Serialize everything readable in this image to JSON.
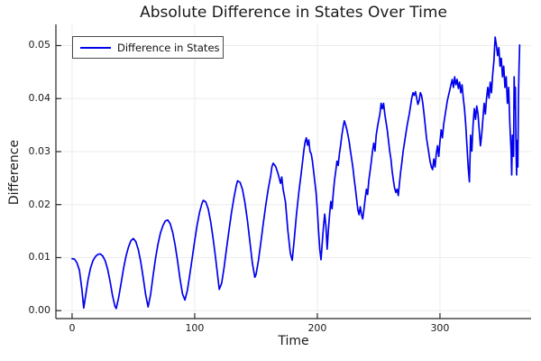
{
  "figure": {
    "background": "#ffffff",
    "grid_color": "#ececec",
    "spine_color": "#262626"
  },
  "chart_data": {
    "type": "line",
    "title": "Absolute Difference in States Over Time",
    "xlabel": "Time",
    "ylabel": "Difference",
    "xlim": [
      -13.2,
      374.3
    ],
    "ylim": [
      -0.0015,
      0.054
    ],
    "x_ticks": [
      0,
      100,
      200,
      300
    ],
    "x_tick_labels": [
      "0",
      "100",
      "200",
      "300"
    ],
    "y_ticks": [
      0,
      0.01,
      0.02,
      0.03,
      0.04,
      0.05
    ],
    "y_tick_labels": [
      "0.00",
      "0.01",
      "0.02",
      "0.03",
      "0.04",
      "0.05"
    ],
    "grid": true,
    "legend": {
      "position": "top-left",
      "entries": [
        {
          "label": "Difference in States",
          "color": "#0000ee"
        }
      ]
    },
    "series": [
      {
        "name": "Difference in States",
        "color": "#0000ee",
        "points": [
          [
            0,
            0.0098
          ],
          [
            2,
            0.0097
          ],
          [
            4,
            0.009
          ],
          [
            6,
            0.0076
          ],
          [
            8,
            0.004
          ],
          [
            9.5,
            0.0005
          ],
          [
            11,
            0.0028
          ],
          [
            13,
            0.0058
          ],
          [
            15,
            0.008
          ],
          [
            17,
            0.0094
          ],
          [
            19,
            0.0102
          ],
          [
            21,
            0.0106
          ],
          [
            23,
            0.0107
          ],
          [
            25,
            0.0103
          ],
          [
            27,
            0.0094
          ],
          [
            29,
            0.0078
          ],
          [
            31,
            0.0055
          ],
          [
            33,
            0.0028
          ],
          [
            35,
            0.0008
          ],
          [
            36,
            0.0004
          ],
          [
            38,
            0.0025
          ],
          [
            40,
            0.0052
          ],
          [
            42,
            0.008
          ],
          [
            44,
            0.0103
          ],
          [
            46,
            0.012
          ],
          [
            48,
            0.0132
          ],
          [
            50,
            0.0136
          ],
          [
            52,
            0.013
          ],
          [
            54,
            0.0115
          ],
          [
            56,
            0.0092
          ],
          [
            58,
            0.0062
          ],
          [
            60,
            0.003
          ],
          [
            62,
            0.0007
          ],
          [
            64,
            0.003
          ],
          [
            66,
            0.0065
          ],
          [
            68,
            0.0098
          ],
          [
            70,
            0.0125
          ],
          [
            72,
            0.0146
          ],
          [
            74,
            0.016
          ],
          [
            76,
            0.0169
          ],
          [
            78,
            0.0171
          ],
          [
            80,
            0.0164
          ],
          [
            82,
            0.0148
          ],
          [
            84,
            0.0124
          ],
          [
            86,
            0.0094
          ],
          [
            88,
            0.006
          ],
          [
            90,
            0.0032
          ],
          [
            92,
            0.002
          ],
          [
            94,
            0.0038
          ],
          [
            96,
            0.0068
          ],
          [
            98,
            0.01
          ],
          [
            100,
            0.0132
          ],
          [
            102,
            0.0162
          ],
          [
            104,
            0.0186
          ],
          [
            106,
            0.0203
          ],
          [
            107,
            0.0208
          ],
          [
            109,
            0.0205
          ],
          [
            111,
            0.0192
          ],
          [
            113,
            0.0168
          ],
          [
            115,
            0.0136
          ],
          [
            117,
            0.01
          ],
          [
            119,
            0.006
          ],
          [
            120,
            0.004
          ],
          [
            122,
            0.0052
          ],
          [
            124,
            0.0082
          ],
          [
            126,
            0.0118
          ],
          [
            128,
            0.0152
          ],
          [
            130,
            0.0185
          ],
          [
            132,
            0.0213
          ],
          [
            134,
            0.0237
          ],
          [
            135,
            0.0245
          ],
          [
            137,
            0.0242
          ],
          [
            139,
            0.0228
          ],
          [
            141,
            0.0203
          ],
          [
            143,
            0.017
          ],
          [
            145,
            0.013
          ],
          [
            147,
            0.009
          ],
          [
            149,
            0.0063
          ],
          [
            150,
            0.0068
          ],
          [
            152,
            0.0095
          ],
          [
            154,
            0.013
          ],
          [
            156,
            0.0166
          ],
          [
            158,
            0.02
          ],
          [
            160,
            0.023
          ],
          [
            162,
            0.0255
          ],
          [
            163,
            0.0272
          ],
          [
            164,
            0.0278
          ],
          [
            166,
            0.0272
          ],
          [
            168,
            0.0258
          ],
          [
            170,
            0.024
          ],
          [
            171,
            0.0252
          ],
          [
            172,
            0.023
          ],
          [
            174,
            0.0205
          ],
          [
            176,
            0.015
          ],
          [
            178,
            0.0108
          ],
          [
            179.5,
            0.0095
          ],
          [
            181,
            0.013
          ],
          [
            183,
            0.0182
          ],
          [
            185,
            0.0225
          ],
          [
            187,
            0.0262
          ],
          [
            189,
            0.0302
          ],
          [
            190,
            0.0318
          ],
          [
            191,
            0.0326
          ],
          [
            192,
            0.0312
          ],
          [
            193,
            0.0322
          ],
          [
            194,
            0.03
          ],
          [
            195,
            0.0296
          ],
          [
            196,
            0.0282
          ],
          [
            197,
            0.0262
          ],
          [
            198,
            0.0242
          ],
          [
            199,
            0.0222
          ],
          [
            200,
            0.019
          ],
          [
            201,
            0.015
          ],
          [
            202,
            0.0115
          ],
          [
            203,
            0.0096
          ],
          [
            204,
            0.0128
          ],
          [
            205,
            0.0158
          ],
          [
            206,
            0.0182
          ],
          [
            207,
            0.016
          ],
          [
            208,
            0.0116
          ],
          [
            209,
            0.0152
          ],
          [
            210,
            0.0182
          ],
          [
            211,
            0.0206
          ],
          [
            212,
            0.0192
          ],
          [
            213,
            0.0222
          ],
          [
            214,
            0.0246
          ],
          [
            215,
            0.0263
          ],
          [
            216,
            0.0282
          ],
          [
            217,
            0.0274
          ],
          [
            218,
            0.0296
          ],
          [
            219,
            0.0312
          ],
          [
            220,
            0.0331
          ],
          [
            221,
            0.0346
          ],
          [
            222,
            0.0358
          ],
          [
            223,
            0.0351
          ],
          [
            224,
            0.0342
          ],
          [
            225,
            0.0331
          ],
          [
            226,
            0.0318
          ],
          [
            227,
            0.0301
          ],
          [
            228,
            0.0286
          ],
          [
            229,
            0.027
          ],
          [
            230,
            0.0249
          ],
          [
            231,
            0.0231
          ],
          [
            232,
            0.0211
          ],
          [
            233,
            0.0191
          ],
          [
            234,
            0.0181
          ],
          [
            235,
            0.0196
          ],
          [
            236,
            0.0181
          ],
          [
            237,
            0.0173
          ],
          [
            238,
            0.0191
          ],
          [
            239,
            0.0211
          ],
          [
            240,
            0.0229
          ],
          [
            241,
            0.0219
          ],
          [
            242,
            0.0246
          ],
          [
            243,
            0.0263
          ],
          [
            244,
            0.0281
          ],
          [
            245,
            0.0301
          ],
          [
            246,
            0.0316
          ],
          [
            247,
            0.0301
          ],
          [
            248,
            0.0331
          ],
          [
            249,
            0.0346
          ],
          [
            250,
            0.0359
          ],
          [
            251,
            0.0371
          ],
          [
            252,
            0.0391
          ],
          [
            253,
            0.0381
          ],
          [
            254,
            0.0391
          ],
          [
            255,
            0.0371
          ],
          [
            256,
            0.0356
          ],
          [
            257,
            0.0341
          ],
          [
            258,
            0.0321
          ],
          [
            259,
            0.0301
          ],
          [
            260,
            0.0286
          ],
          [
            261,
            0.0263
          ],
          [
            262,
            0.0246
          ],
          [
            263,
            0.0231
          ],
          [
            264,
            0.0223
          ],
          [
            265,
            0.0229
          ],
          [
            266,
            0.0217
          ],
          [
            267,
            0.0241
          ],
          [
            268,
            0.0263
          ],
          [
            269,
            0.0281
          ],
          [
            270,
            0.0301
          ],
          [
            271,
            0.0316
          ],
          [
            272,
            0.0331
          ],
          [
            273,
            0.0346
          ],
          [
            274,
            0.0359
          ],
          [
            275,
            0.0371
          ],
          [
            276,
            0.0386
          ],
          [
            277,
            0.0401
          ],
          [
            278,
            0.0411
          ],
          [
            279,
            0.0406
          ],
          [
            280,
            0.0413
          ],
          [
            281,
            0.0401
          ],
          [
            282,
            0.0389
          ],
          [
            283,
            0.0396
          ],
          [
            284,
            0.0411
          ],
          [
            285,
            0.0406
          ],
          [
            286,
            0.0391
          ],
          [
            287,
            0.0371
          ],
          [
            288,
            0.0349
          ],
          [
            289,
            0.0326
          ],
          [
            290,
            0.0311
          ],
          [
            291,
            0.0296
          ],
          [
            292,
            0.0281
          ],
          [
            293,
            0.0271
          ],
          [
            294,
            0.0266
          ],
          [
            295,
            0.0286
          ],
          [
            296,
            0.0271
          ],
          [
            297,
            0.0296
          ],
          [
            298,
            0.0311
          ],
          [
            299,
            0.0291
          ],
          [
            300,
            0.0319
          ],
          [
            301,
            0.0341
          ],
          [
            302,
            0.0326
          ],
          [
            303,
            0.0351
          ],
          [
            304,
            0.0366
          ],
          [
            305,
            0.0381
          ],
          [
            306,
            0.0396
          ],
          [
            307,
            0.0406
          ],
          [
            308,
            0.0416
          ],
          [
            309,
            0.0426
          ],
          [
            310,
            0.0436
          ],
          [
            311,
            0.0421
          ],
          [
            312,
            0.0441
          ],
          [
            313,
            0.0426
          ],
          [
            314,
            0.0436
          ],
          [
            315,
            0.0419
          ],
          [
            316,
            0.0431
          ],
          [
            317,
            0.0411
          ],
          [
            318,
            0.0426
          ],
          [
            319,
            0.0401
          ],
          [
            320,
            0.0381
          ],
          [
            321,
            0.0351
          ],
          [
            322,
            0.0311
          ],
          [
            323,
            0.0271
          ],
          [
            324,
            0.0243
          ],
          [
            325,
            0.0331
          ],
          [
            326,
            0.0301
          ],
          [
            327,
            0.0351
          ],
          [
            328,
            0.0381
          ],
          [
            329,
            0.0361
          ],
          [
            330,
            0.0386
          ],
          [
            331,
            0.0371
          ],
          [
            332,
            0.0341
          ],
          [
            333,
            0.0311
          ],
          [
            334,
            0.0331
          ],
          [
            335,
            0.0361
          ],
          [
            336,
            0.0391
          ],
          [
            337,
            0.0371
          ],
          [
            338,
            0.0401
          ],
          [
            339,
            0.0421
          ],
          [
            340,
            0.0401
          ],
          [
            341,
            0.0431
          ],
          [
            342,
            0.0411
          ],
          [
            343,
            0.0446
          ],
          [
            344,
            0.0471
          ],
          [
            345,
            0.0516
          ],
          [
            346,
            0.0501
          ],
          [
            347,
            0.0481
          ],
          [
            348,
            0.0496
          ],
          [
            349,
            0.0461
          ],
          [
            350,
            0.0476
          ],
          [
            351,
            0.0441
          ],
          [
            352,
            0.0461
          ],
          [
            353,
            0.0421
          ],
          [
            354,
            0.0441
          ],
          [
            355,
            0.0391
          ],
          [
            356,
            0.0421
          ],
          [
            357,
            0.0351
          ],
          [
            358,
            0.0301
          ],
          [
            358.5,
            0.0256
          ],
          [
            359,
            0.0331
          ],
          [
            360,
            0.0291
          ],
          [
            360.5,
            0.0441
          ],
          [
            361,
            0.0381
          ],
          [
            361.5,
            0.0421
          ],
          [
            362,
            0.0311
          ],
          [
            362.5,
            0.0256
          ],
          [
            363,
            0.0321
          ],
          [
            363.5,
            0.0271
          ],
          [
            364,
            0.0401
          ],
          [
            364.5,
            0.0461
          ],
          [
            365,
            0.0501
          ]
        ]
      }
    ]
  }
}
